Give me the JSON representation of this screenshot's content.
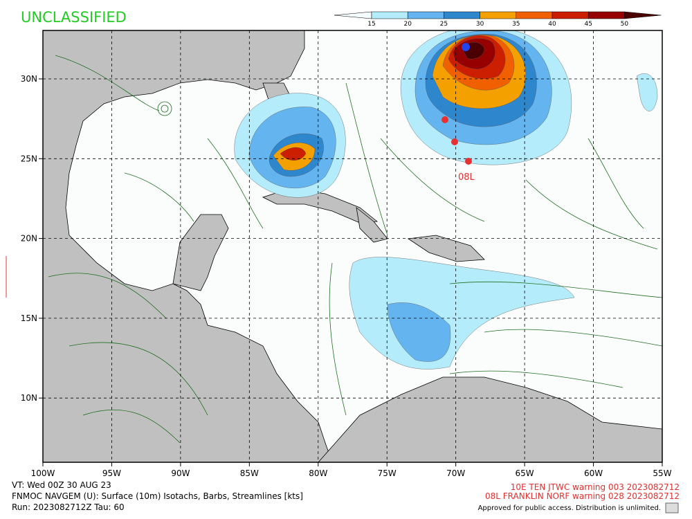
{
  "header": {
    "classification": "UNCLASSIFIED"
  },
  "colorbar": {
    "levels": [
      15,
      20,
      25,
      30,
      35,
      40,
      45,
      50
    ],
    "colors": [
      "#f4fcff",
      "#b4ecfc",
      "#64b4f0",
      "#2e86cc",
      "#f4a000",
      "#f06000",
      "#cc1e00",
      "#960000",
      "#4a0000"
    ]
  },
  "map": {
    "lat_ticks": [
      {
        "value": 30,
        "label": "30N"
      },
      {
        "value": 25,
        "label": "25N"
      },
      {
        "value": 20,
        "label": "20N"
      },
      {
        "value": 15,
        "label": "15N"
      },
      {
        "value": 10,
        "label": "10N"
      }
    ],
    "lon_ticks": [
      {
        "value": -100,
        "label": "100W"
      },
      {
        "value": -95,
        "label": "95W"
      },
      {
        "value": -90,
        "label": "90W"
      },
      {
        "value": -85,
        "label": "85W"
      },
      {
        "value": -80,
        "label": "80W"
      },
      {
        "value": -75,
        "label": "75W"
      },
      {
        "value": -70,
        "label": "70W"
      },
      {
        "value": -65,
        "label": "65W"
      },
      {
        "value": -60,
        "label": "60W"
      },
      {
        "value": -55,
        "label": "55W"
      }
    ],
    "storm_label": "08L"
  },
  "footer": {
    "valid_time": "VT: Wed 00Z 30 AUG 23",
    "product": "FNMOC NAVGEM (U): Surface (10m) Isotachs, Barbs, Streamlines [kts]",
    "run": "Run: 2023082712Z Tau: 60",
    "warnings": [
      "10E TEN JTWC warning 003 2023082712",
      "08L FRANKLIN NORF warning 028 2023082712"
    ],
    "release": "Approved for public access. Distribution is unlimited."
  }
}
